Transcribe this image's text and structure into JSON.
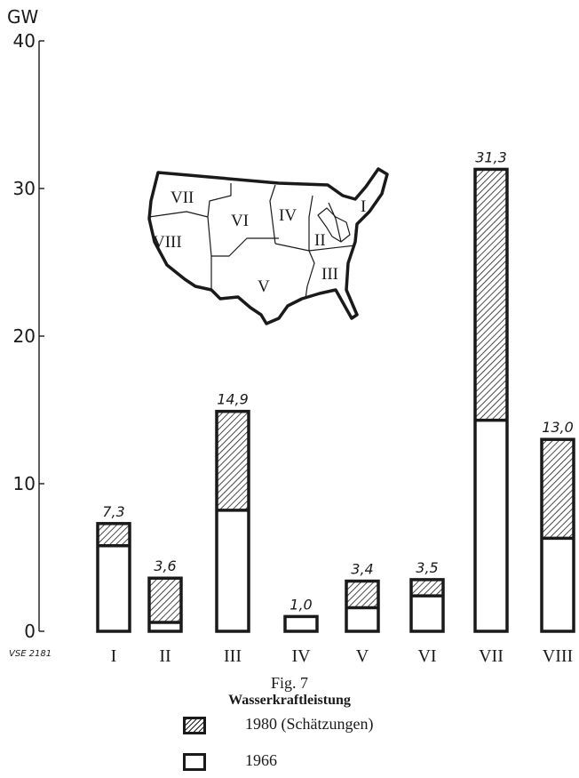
{
  "chart_data": {
    "type": "bar",
    "stacked": true,
    "ylabel": "GW",
    "ylim": [
      0,
      40
    ],
    "yticks": [
      0,
      10,
      20,
      30,
      40
    ],
    "categories": [
      "I",
      "II",
      "III",
      "IV",
      "V",
      "VI",
      "VII",
      "VIII"
    ],
    "series": [
      {
        "name": "1966",
        "values": [
          5.8,
          0.6,
          8.2,
          1.0,
          1.6,
          2.4,
          14.3,
          6.3
        ],
        "pattern": "white"
      },
      {
        "name": "1980 (Schätzungen)",
        "values": [
          1.5,
          3.0,
          6.7,
          0.0,
          1.8,
          1.1,
          17.0,
          6.7
        ],
        "pattern": "hatched"
      }
    ],
    "totals": [
      7.3,
      3.6,
      14.9,
      1.0,
      3.4,
      3.5,
      31.3,
      13.0
    ],
    "data_labels": [
      "7,3",
      "3,6",
      "14,9",
      "1,0",
      "3,4",
      "3,5",
      "31,3",
      "13,0"
    ],
    "source_code": "VSE 2181",
    "legend": [
      {
        "label": "1980 (Schätzungen)",
        "pattern": "hatched"
      },
      {
        "label": "1966",
        "pattern": "white"
      }
    ]
  },
  "caption": {
    "figure": "Fig. 7",
    "title": "Wasserkraftleistung"
  },
  "map": {
    "regions": [
      "I",
      "II",
      "III",
      "IV",
      "V",
      "VI",
      "VII",
      "VIII"
    ]
  },
  "colors": {
    "ink": "#1a1a1a",
    "paper": "#ffffff"
  }
}
